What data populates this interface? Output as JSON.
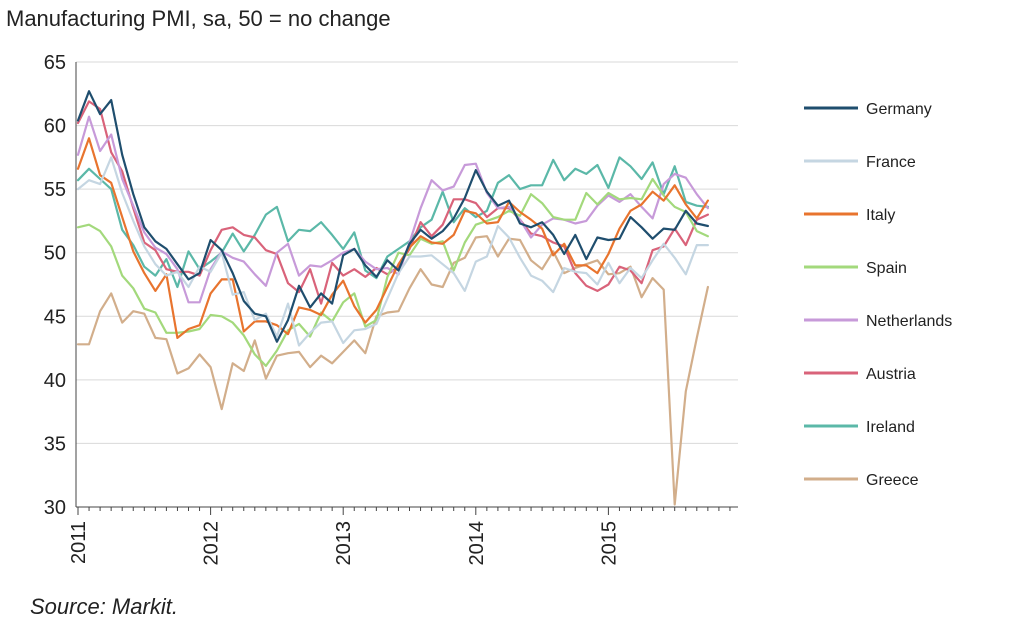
{
  "chart_data": {
    "type": "line",
    "title": "Manufacturing PMI, sa, 50 = no change",
    "source": "Source: Markit.",
    "ylim": [
      30,
      65
    ],
    "yticks": [
      30,
      35,
      40,
      45,
      50,
      55,
      60,
      65
    ],
    "xticks": [
      "2011",
      "2012",
      "2013",
      "2014",
      "2015"
    ],
    "grid": "horizontal",
    "legend_position": "right",
    "x_start": "2011-01",
    "x_end": "2015-10",
    "series": [
      {
        "name": "Germany",
        "color": "#1f4e6e",
        "values": [
          60.4,
          62.7,
          60.9,
          62.0,
          57.7,
          54.6,
          52.0,
          50.9,
          50.3,
          49.1,
          47.9,
          48.4,
          51.0,
          50.2,
          48.4,
          46.2,
          45.2,
          45.0,
          43.0,
          44.7,
          47.4,
          45.7,
          46.8,
          46.0,
          49.8,
          50.3,
          49.0,
          48.1,
          49.4,
          48.6,
          50.7,
          51.8,
          51.1,
          51.7,
          52.7,
          54.3,
          56.5,
          54.8,
          53.7,
          54.1,
          52.3,
          52.0,
          52.4,
          51.4,
          49.9,
          51.4,
          49.5,
          51.2,
          51.0,
          51.1,
          52.8,
          52.0,
          51.1,
          51.9,
          51.8,
          53.3,
          52.3,
          52.1
        ]
      },
      {
        "name": "France",
        "color": "#c5d6e2",
        "values": [
          55.0,
          55.7,
          55.4,
          57.5,
          54.7,
          52.5,
          50.5,
          49.1,
          48.2,
          48.5,
          47.3,
          48.9,
          48.5,
          50.0,
          46.7,
          46.9,
          44.7,
          45.2,
          43.4,
          46.0,
          42.7,
          43.7,
          44.5,
          44.6,
          42.9,
          43.9,
          44.0,
          44.4,
          46.4,
          48.4,
          49.7,
          49.7,
          49.8,
          49.1,
          48.4,
          47.0,
          49.3,
          49.7,
          52.1,
          51.2,
          49.6,
          48.2,
          47.8,
          46.9,
          48.8,
          48.5,
          48.4,
          47.5,
          49.2,
          47.6,
          48.8,
          48.0,
          49.4,
          50.7,
          49.6,
          48.3,
          50.6,
          50.6
        ]
      },
      {
        "name": "Italy",
        "color": "#e8742e",
        "values": [
          56.6,
          59.0,
          56.1,
          55.5,
          52.8,
          50.1,
          48.4,
          47.0,
          48.3,
          43.3,
          44.0,
          44.3,
          46.8,
          47.9,
          47.9,
          43.8,
          44.6,
          44.6,
          44.3,
          43.6,
          45.7,
          45.5,
          45.1,
          46.7,
          47.8,
          45.8,
          44.5,
          45.5,
          47.3,
          49.1,
          50.4,
          51.3,
          50.8,
          50.7,
          51.4,
          53.3,
          53.1,
          52.3,
          52.4,
          54.0,
          53.2,
          52.6,
          51.9,
          49.8,
          50.7,
          49.0,
          49.0,
          48.4,
          49.9,
          51.9,
          53.3,
          53.8,
          54.8,
          54.1,
          55.3,
          53.8,
          52.7,
          54.1
        ]
      },
      {
        "name": "Spain",
        "color": "#a3d97c",
        "values": [
          52.0,
          52.2,
          51.7,
          50.5,
          48.2,
          47.2,
          45.6,
          45.3,
          43.7,
          43.7,
          43.8,
          44.0,
          45.1,
          45.0,
          44.5,
          43.5,
          42.0,
          41.1,
          42.3,
          43.9,
          44.4,
          43.4,
          45.3,
          44.6,
          46.1,
          46.8,
          44.2,
          44.7,
          48.1,
          50.0,
          49.8,
          51.1,
          50.7,
          50.9,
          48.6,
          50.8,
          52.2,
          52.5,
          52.8,
          53.3,
          52.9,
          54.6,
          53.9,
          52.8,
          52.6,
          52.6,
          54.7,
          53.8,
          54.7,
          54.2,
          54.3,
          54.2,
          55.8,
          54.5,
          53.6,
          53.2,
          51.7,
          51.3
        ]
      },
      {
        "name": "Netherlands",
        "color": "#c79ad9",
        "values": [
          57.7,
          60.7,
          58.0,
          59.3,
          55.8,
          53.7,
          51.6,
          50.4,
          49.9,
          48.7,
          46.1,
          46.1,
          48.7,
          50.1,
          49.6,
          49.3,
          48.3,
          47.4,
          50.0,
          50.7,
          48.2,
          49.0,
          48.9,
          49.4,
          50.0,
          50.3,
          49.3,
          48.7,
          48.8,
          48.3,
          50.8,
          53.5,
          55.7,
          54.9,
          55.2,
          56.9,
          57.0,
          54.7,
          53.5,
          53.6,
          52.6,
          51.2,
          52.2,
          52.7,
          52.6,
          52.3,
          52.5,
          53.7,
          54.5,
          54.0,
          54.6,
          53.6,
          52.7,
          55.4,
          56.2,
          55.9,
          54.6,
          53.5
        ]
      },
      {
        "name": "Austria",
        "color": "#d9637a",
        "values": [
          60.2,
          61.9,
          61.3,
          57.9,
          56.4,
          53.5,
          50.8,
          50.2,
          48.7,
          48.5,
          48.5,
          48.2,
          50.2,
          51.8,
          52.0,
          51.4,
          51.2,
          50.2,
          49.9,
          47.6,
          46.9,
          48.7,
          46.0,
          49.2,
          48.2,
          48.7,
          48.1,
          48.8,
          48.3,
          48.9,
          50.3,
          52.4,
          51.3,
          52.2,
          54.2,
          54.2,
          53.9,
          52.8,
          53.5,
          53.5,
          52.6,
          51.5,
          51.3,
          50.8,
          50.5,
          48.4,
          47.4,
          47.0,
          47.5,
          48.9,
          48.6,
          47.6,
          50.2,
          50.5,
          51.9,
          50.6,
          52.6,
          53.0
        ]
      },
      {
        "name": "Ireland",
        "color": "#5bb8a8",
        "values": [
          55.7,
          56.6,
          55.8,
          55.0,
          51.8,
          50.6,
          48.9,
          48.2,
          49.5,
          47.3,
          50.1,
          48.7,
          49.3,
          50.0,
          51.5,
          50.1,
          51.4,
          53.0,
          53.6,
          50.9,
          51.8,
          51.7,
          52.4,
          51.4,
          50.3,
          51.6,
          48.6,
          48.0,
          49.7,
          50.3,
          50.9,
          52.0,
          52.6,
          54.8,
          52.4,
          53.5,
          52.8,
          53.3,
          55.5,
          56.1,
          55.0,
          55.3,
          55.3,
          57.3,
          55.7,
          56.6,
          56.2,
          56.9,
          55.1,
          57.5,
          56.8,
          55.8,
          57.1,
          54.6,
          56.8,
          54.0,
          53.7,
          53.6
        ]
      },
      {
        "name": "Greece",
        "color": "#d2ae8b",
        "values": [
          42.8,
          42.8,
          45.4,
          46.8,
          44.5,
          45.4,
          45.2,
          43.3,
          43.2,
          40.5,
          40.9,
          42.0,
          41.0,
          37.7,
          41.3,
          40.7,
          43.1,
          40.1,
          41.9,
          42.1,
          42.2,
          41.0,
          41.9,
          41.3,
          42.2,
          43.1,
          42.1,
          45.0,
          45.3,
          45.4,
          47.2,
          48.7,
          47.5,
          47.3,
          49.2,
          49.6,
          51.2,
          51.3,
          49.7,
          51.1,
          51.0,
          49.4,
          48.7,
          50.1,
          48.4,
          48.8,
          49.1,
          49.4,
          48.3,
          48.4,
          48.9,
          46.5,
          48.0,
          47.1,
          30.2,
          39.1,
          43.3,
          47.3
        ]
      }
    ]
  }
}
